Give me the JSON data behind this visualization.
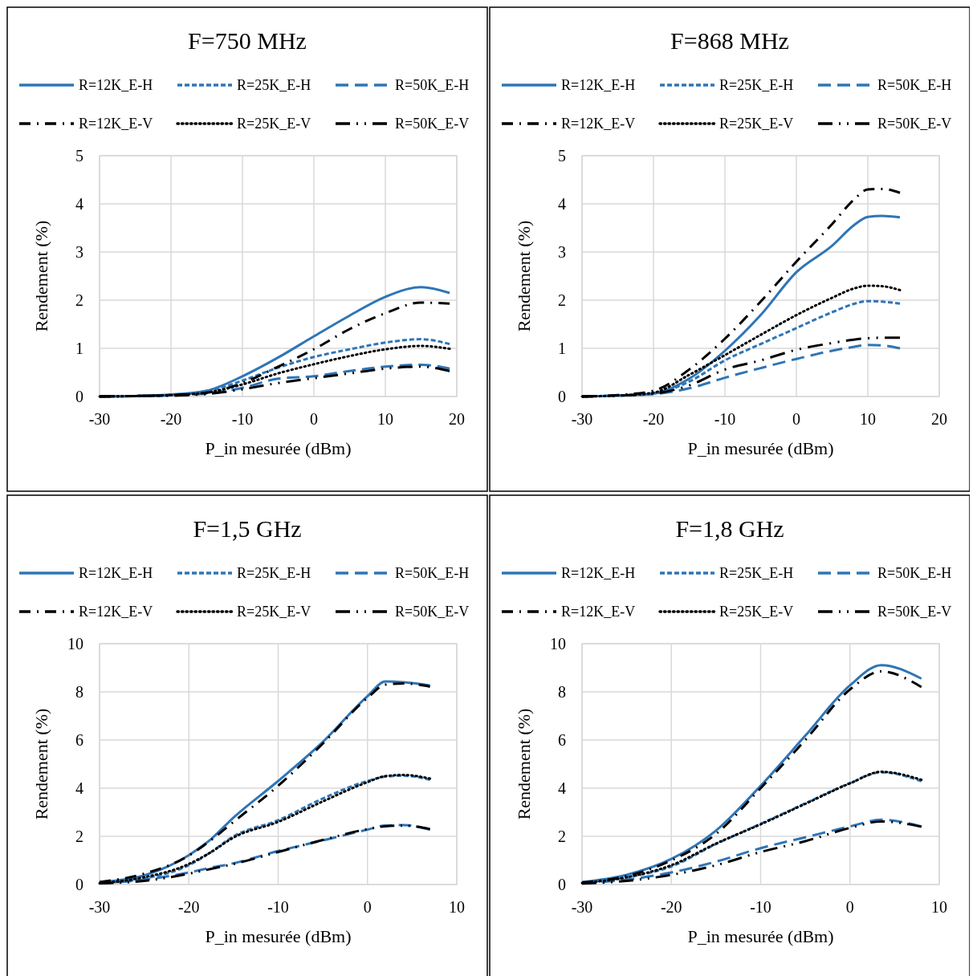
{
  "chart_data": [
    {
      "type": "line",
      "title": "F=750 MHz",
      "xlabel": "P_in mesurée (dBm)",
      "ylabel": "Rendement (%)",
      "legend": "top",
      "grid": true,
      "xlim": [
        -30,
        20
      ],
      "xticks": [
        -30,
        -20,
        -10,
        0,
        10,
        20
      ],
      "ylim": [
        0,
        5
      ],
      "yticks": [
        0,
        1,
        2,
        3,
        4,
        5
      ],
      "x": [
        -30,
        -25,
        -20,
        -15,
        -10,
        -5,
        0,
        5,
        10,
        15,
        19
      ],
      "series": [
        {
          "name": "R=12K_E-H",
          "color": "#2e75b6",
          "line_style": "solid",
          "values": [
            0,
            0.01,
            0.04,
            0.12,
            0.42,
            0.81,
            1.25,
            1.68,
            2.07,
            2.27,
            2.15
          ]
        },
        {
          "name": "R=25K_E-H",
          "color": "#2e75b6",
          "line_style": "dashed",
          "values": [
            0,
            0.01,
            0.03,
            0.1,
            0.33,
            0.6,
            0.82,
            0.98,
            1.12,
            1.19,
            1.09
          ]
        },
        {
          "name": "R=50K_E-H",
          "color": "#2e75b6",
          "line_style": "longdash",
          "values": [
            0,
            0.01,
            0.02,
            0.06,
            0.18,
            0.37,
            0.42,
            0.53,
            0.62,
            0.66,
            0.58
          ]
        },
        {
          "name": "R=12K_E-V",
          "color": "#000000",
          "line_style": "dashdot",
          "values": [
            0,
            0.01,
            0.03,
            0.08,
            0.28,
            0.62,
            0.98,
            1.4,
            1.73,
            1.95,
            1.93
          ]
        },
        {
          "name": "R=25K_E-V",
          "color": "#000000",
          "line_style": "dotted",
          "values": [
            0,
            0.01,
            0.03,
            0.08,
            0.25,
            0.48,
            0.67,
            0.84,
            0.98,
            1.05,
            0.99
          ]
        },
        {
          "name": "R=50K_E-V",
          "color": "#000000",
          "line_style": "longdashdotdot",
          "values": [
            0,
            0.01,
            0.02,
            0.05,
            0.15,
            0.28,
            0.38,
            0.48,
            0.58,
            0.62,
            0.53
          ]
        }
      ]
    },
    {
      "type": "line",
      "title": "F=868 MHz",
      "xlabel": "P_in mesurée (dBm)",
      "ylabel": "Rendement (%)",
      "legend": "top",
      "grid": true,
      "xlim": [
        -30,
        20
      ],
      "xticks": [
        -30,
        -20,
        -10,
        0,
        10,
        20
      ],
      "ylim": [
        0,
        5
      ],
      "yticks": [
        0,
        1,
        2,
        3,
        4,
        5
      ],
      "x": [
        -30,
        -25,
        -20,
        -15,
        -10,
        -5,
        0,
        5,
        8,
        10,
        12,
        14.5
      ],
      "series": [
        {
          "name": "R=12K_E-H",
          "color": "#2e75b6",
          "line_style": "solid",
          "values": [
            0,
            0.02,
            0.06,
            0.37,
            0.95,
            1.69,
            2.58,
            3.13,
            3.55,
            3.73,
            3.75,
            3.72
          ]
        },
        {
          "name": "R=25K_E-H",
          "color": "#2e75b6",
          "line_style": "dashed",
          "values": [
            0,
            0.02,
            0.06,
            0.31,
            0.75,
            1.09,
            1.42,
            1.75,
            1.92,
            1.98,
            1.97,
            1.93
          ]
        },
        {
          "name": "R=50K_E-H",
          "color": "#2e75b6",
          "line_style": "longdash",
          "values": [
            0,
            0.02,
            0.05,
            0.17,
            0.39,
            0.59,
            0.78,
            0.95,
            1.03,
            1.07,
            1.06,
            1.0
          ]
        },
        {
          "name": "R=12K_E-V",
          "color": "#000000",
          "line_style": "dashdot",
          "values": [
            0,
            0.03,
            0.12,
            0.56,
            1.2,
            1.97,
            2.8,
            3.58,
            4.08,
            4.3,
            4.31,
            4.23
          ]
        },
        {
          "name": "R=25K_E-V",
          "color": "#000000",
          "line_style": "dotted",
          "values": [
            0,
            0.02,
            0.08,
            0.45,
            0.86,
            1.28,
            1.69,
            2.05,
            2.24,
            2.3,
            2.29,
            2.21
          ]
        },
        {
          "name": "R=50K_E-V",
          "color": "#000000",
          "line_style": "longdashdotdot",
          "values": [
            0,
            0.02,
            0.06,
            0.23,
            0.56,
            0.75,
            0.97,
            1.11,
            1.18,
            1.21,
            1.22,
            1.22
          ]
        }
      ]
    },
    {
      "type": "line",
      "title": "F=1,5 GHz",
      "xlabel": "P_in mesurée (dBm)",
      "ylabel": "Rendement (%)",
      "legend": "top",
      "grid": true,
      "xlim": [
        -30,
        10
      ],
      "xticks": [
        -30,
        -20,
        -10,
        0,
        10
      ],
      "ylim": [
        0,
        10
      ],
      "yticks": [
        0,
        2,
        4,
        6,
        8,
        10
      ],
      "x": [
        -30,
        -25,
        -20,
        -17.5,
        -15,
        -10,
        -5,
        0,
        2,
        4,
        7
      ],
      "series": [
        {
          "name": "R=12K_E-H",
          "color": "#2e75b6",
          "line_style": "solid",
          "values": [
            0.1,
            0.38,
            1.22,
            1.89,
            2.78,
            4.3,
            5.92,
            7.82,
            8.43,
            8.4,
            8.27
          ]
        },
        {
          "name": "R=25K_E-H",
          "color": "#2e75b6",
          "line_style": "dashed",
          "values": [
            0.05,
            0.25,
            0.8,
            1.35,
            2.0,
            2.67,
            3.57,
            4.3,
            4.48,
            4.52,
            4.35
          ]
        },
        {
          "name": "R=50K_E-H",
          "color": "#2e75b6",
          "line_style": "longdash",
          "values": [
            0.05,
            0.2,
            0.5,
            0.7,
            0.88,
            1.39,
            1.83,
            2.28,
            2.45,
            2.47,
            2.28
          ]
        },
        {
          "name": "R=12K_E-V",
          "color": "#000000",
          "line_style": "dashdot",
          "values": [
            0.1,
            0.45,
            1.2,
            1.85,
            2.6,
            4.1,
            5.85,
            7.75,
            8.3,
            8.35,
            8.22
          ]
        },
        {
          "name": "R=25K_E-V",
          "color": "#000000",
          "line_style": "dotted",
          "values": [
            0.05,
            0.3,
            0.85,
            1.35,
            1.95,
            2.6,
            3.45,
            4.25,
            4.5,
            4.55,
            4.4
          ]
        },
        {
          "name": "R=50K_E-V",
          "color": "#000000",
          "line_style": "longdashdotdot",
          "values": [
            0.05,
            0.15,
            0.45,
            0.65,
            0.85,
            1.35,
            1.85,
            2.3,
            2.42,
            2.45,
            2.3
          ]
        }
      ]
    },
    {
      "type": "line",
      "title": "F=1,8 GHz",
      "xlabel": "P_in mesurée (dBm)",
      "ylabel": "Rendement (%)",
      "legend": "top",
      "grid": true,
      "xlim": [
        -30,
        10
      ],
      "xticks": [
        -30,
        -20,
        -10,
        0,
        10
      ],
      "ylim": [
        0,
        10
      ],
      "yticks": [
        0,
        2,
        4,
        6,
        8,
        10
      ],
      "x": [
        -30,
        -25,
        -20,
        -15,
        -10,
        -5,
        0,
        3.5,
        8
      ],
      "series": [
        {
          "name": "R=12K_E-H",
          "color": "#2e75b6",
          "line_style": "solid",
          "values": [
            0.1,
            0.4,
            1.06,
            2.24,
            4.1,
            6.18,
            8.27,
            9.11,
            8.55
          ]
        },
        {
          "name": "R=25K_E-H",
          "color": "#2e75b6",
          "line_style": "dashed",
          "values": [
            0.08,
            0.3,
            0.75,
            1.68,
            2.52,
            3.37,
            4.21,
            4.66,
            4.29
          ]
        },
        {
          "name": "R=50K_E-H",
          "color": "#2e75b6",
          "line_style": "longdash",
          "values": [
            0.05,
            0.2,
            0.5,
            0.95,
            1.51,
            1.96,
            2.41,
            2.69,
            2.41
          ]
        },
        {
          "name": "R=12K_E-V",
          "color": "#000000",
          "line_style": "dashdot",
          "values": [
            0.08,
            0.35,
            1.0,
            2.1,
            4.0,
            6.0,
            8.1,
            8.85,
            8.2
          ]
        },
        {
          "name": "R=25K_E-V",
          "color": "#000000",
          "line_style": "dotted",
          "values": [
            0.06,
            0.3,
            0.8,
            1.7,
            2.5,
            3.35,
            4.2,
            4.68,
            4.35
          ]
        },
        {
          "name": "R=50K_E-V",
          "color": "#000000",
          "line_style": "longdashdotdot",
          "values": [
            0.04,
            0.15,
            0.4,
            0.8,
            1.35,
            1.8,
            2.35,
            2.62,
            2.4
          ]
        }
      ]
    }
  ]
}
